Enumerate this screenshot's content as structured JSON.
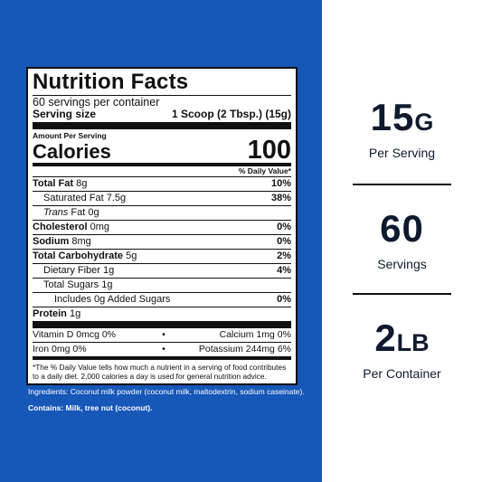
{
  "colors": {
    "panel_blue": "#1657b8",
    "stat_text": "#0f1a2e"
  },
  "label": {
    "title": "Nutrition Facts",
    "servings": "60 servings per container",
    "serving_size_label": "Serving size",
    "serving_size_value": "1 Scoop (2 Tbsp.) (15g)",
    "amount_per_serving": "Amount Per Serving",
    "calories_label": "Calories",
    "calories_value": "100",
    "dv_header": "% Daily Value*",
    "rows": {
      "total_fat": {
        "label": "Total Fat",
        "amount": "8g",
        "dv": "10%"
      },
      "saturated_fat": {
        "label": "Saturated Fat",
        "amount": "7.5g",
        "dv": "38%"
      },
      "trans_fat": {
        "label": "Trans",
        "label2": "Fat",
        "amount": "0g"
      },
      "cholesterol": {
        "label": "Cholesterol",
        "amount": "0mg",
        "dv": "0%"
      },
      "sodium": {
        "label": "Sodium",
        "amount": "8mg",
        "dv": "0%"
      },
      "total_carb": {
        "label": "Total Carbohydrate",
        "amount": "5g",
        "dv": "2%"
      },
      "dietary_fiber": {
        "label": "Dietary Fiber",
        "amount": "1g",
        "dv": "4%"
      },
      "total_sugars": {
        "label": "Total Sugars",
        "amount": "1g"
      },
      "added_sugars": {
        "label": "Includes 0g Added Sugars",
        "dv": "0%"
      },
      "protein": {
        "label": "Protein",
        "amount": "1g"
      }
    },
    "vitamins": [
      {
        "left": "Vitamin D  0mcg  0%",
        "right": "Calcium  1mg  0%"
      },
      {
        "left": "Iron  0mg  0%",
        "right": "Potassium  244mg  6%"
      }
    ],
    "bullet": "•",
    "footnote": "*The % Daily Value tells how much a nutrient in a serving of food contributes to a daily diet.  2,000 calories a day is used for general nutrition advice."
  },
  "ingredients": "Ingredients: Coconut milk powder (coconut milk, maltodextrin, sodium caseinate).",
  "contains": "Contains: Milk, tree nut (coconut).",
  "stats": [
    {
      "value": "15",
      "unit": "G",
      "caption": "Per Serving"
    },
    {
      "value": "60",
      "unit": "",
      "caption": "Servings"
    },
    {
      "value": "2",
      "unit": "LB",
      "caption": "Per Container"
    }
  ]
}
